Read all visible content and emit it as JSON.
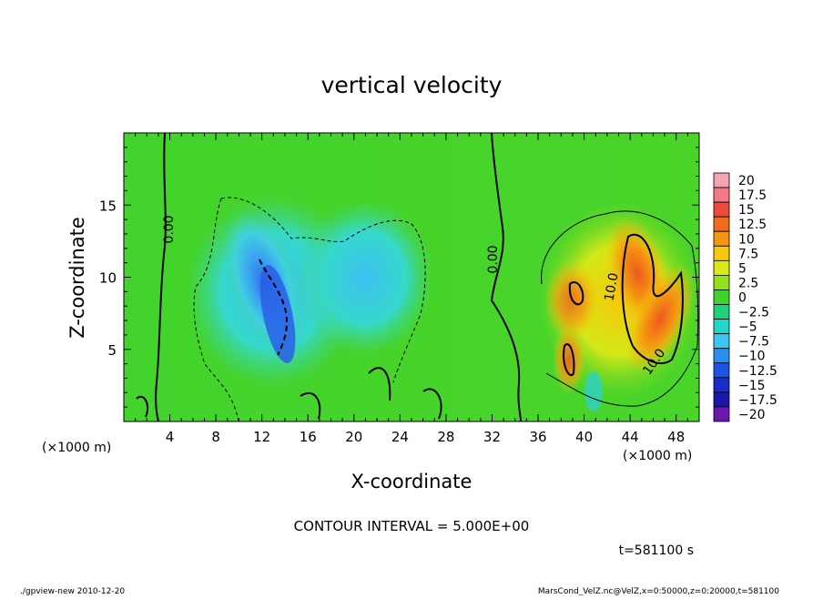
{
  "chart_data": {
    "type": "heatmap",
    "title": "vertical velocity",
    "xlabel": "X-coordinate",
    "ylabel": "Z-coordinate",
    "x_unit_left": "(×1000 m)",
    "x_unit_right": "(×1000 m)",
    "xlim": [
      0,
      50
    ],
    "ylim": [
      0,
      20
    ],
    "x_ticks": [
      4,
      8,
      12,
      16,
      20,
      24,
      28,
      32,
      36,
      40,
      44,
      48
    ],
    "y_ticks": [
      5,
      10,
      15
    ],
    "colorbar": {
      "levels": [
        "20",
        "17.5",
        "15",
        "12.5",
        "10",
        "7.5",
        "5",
        "2.5",
        "0",
        "−2.5",
        "−5",
        "−7.5",
        "−10",
        "−12.5",
        "−15",
        "−17.5",
        "−20"
      ],
      "colors": [
        "#f4a6b0",
        "#f27a86",
        "#ee4a3a",
        "#f26b1c",
        "#f4960f",
        "#f6c80a",
        "#d9ea16",
        "#94e01a",
        "#3ed42a",
        "#22d27a",
        "#20d8c8",
        "#3cc6f0",
        "#2a8ef0",
        "#1c54e6",
        "#1a2ccc",
        "#1a18a8",
        "#6a18b0"
      ]
    },
    "contour_labels": [
      "0.00",
      "0.00",
      "10.0",
      "10.0"
    ],
    "contour_interval": "CONTOUR INTERVAL = 5.000E+00",
    "time_label": "t=581100 s",
    "grid": false
  },
  "footer": {
    "left": "./gpview-new  2010-12-20",
    "right": "MarsCond_VelZ.nc@VelZ,x=0:50000,z=0:20000,t=581100"
  }
}
